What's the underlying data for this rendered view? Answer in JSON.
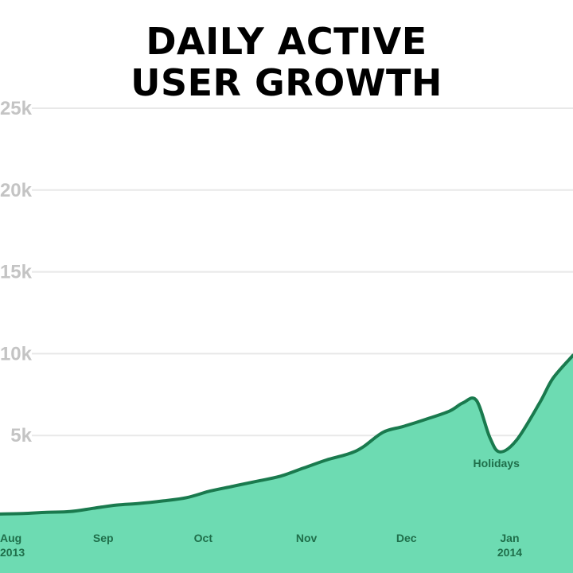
{
  "chart_data": {
    "type": "area",
    "title_lines": [
      "DAILY ACTIVE",
      "USER GROWTH"
    ],
    "xlabel": "",
    "ylabel": "",
    "ylim": [
      0,
      25000
    ],
    "xlim": [
      "2013-08-01",
      "2014-01-20"
    ],
    "y_ticks": [
      {
        "value": 5000,
        "label": "5k"
      },
      {
        "value": 10000,
        "label": "10k"
      },
      {
        "value": 15000,
        "label": "15k"
      },
      {
        "value": 20000,
        "label": "20k"
      },
      {
        "value": 25000,
        "label": "25k"
      }
    ],
    "x_ticks": [
      {
        "date": "2013-08-01",
        "label": "Aug",
        "sublabel": "2013"
      },
      {
        "date": "2013-09-01",
        "label": "Sep",
        "sublabel": ""
      },
      {
        "date": "2013-10-01",
        "label": "Oct",
        "sublabel": ""
      },
      {
        "date": "2013-11-01",
        "label": "Nov",
        "sublabel": ""
      },
      {
        "date": "2013-12-01",
        "label": "Dec",
        "sublabel": ""
      },
      {
        "date": "2014-01-01",
        "label": "Jan",
        "sublabel": "2014"
      }
    ],
    "grid": true,
    "colors": {
      "fill": "#6ddbb2",
      "line": "#1a7a4e",
      "grid": "#e8e8e8"
    },
    "series": [
      {
        "x": [
          "2013-08-01",
          "2013-08-08",
          "2013-08-15",
          "2013-08-22",
          "2013-08-29",
          "2013-09-05",
          "2013-09-12",
          "2013-09-19",
          "2013-09-26",
          "2013-10-03",
          "2013-10-10",
          "2013-10-17",
          "2013-10-24",
          "2013-10-31",
          "2013-11-07",
          "2013-11-14",
          "2013-11-18",
          "2013-11-24",
          "2013-11-30",
          "2013-12-07",
          "2013-12-14",
          "2013-12-18",
          "2013-12-22",
          "2013-12-26",
          "2013-12-29",
          "2014-01-03",
          "2014-01-10",
          "2014-01-14",
          "2014-01-20"
        ],
        "values": [
          200,
          230,
          300,
          350,
          550,
          750,
          850,
          1000,
          1200,
          1600,
          1900,
          2200,
          2500,
          3000,
          3500,
          3900,
          4300,
          5200,
          5550,
          6000,
          6500,
          7000,
          7150,
          4900,
          4000,
          4700,
          7000,
          8500,
          9900
        ]
      }
    ],
    "annotations": [
      {
        "text": "Holidays",
        "x": "2013-12-28",
        "y": 3300
      }
    ]
  }
}
